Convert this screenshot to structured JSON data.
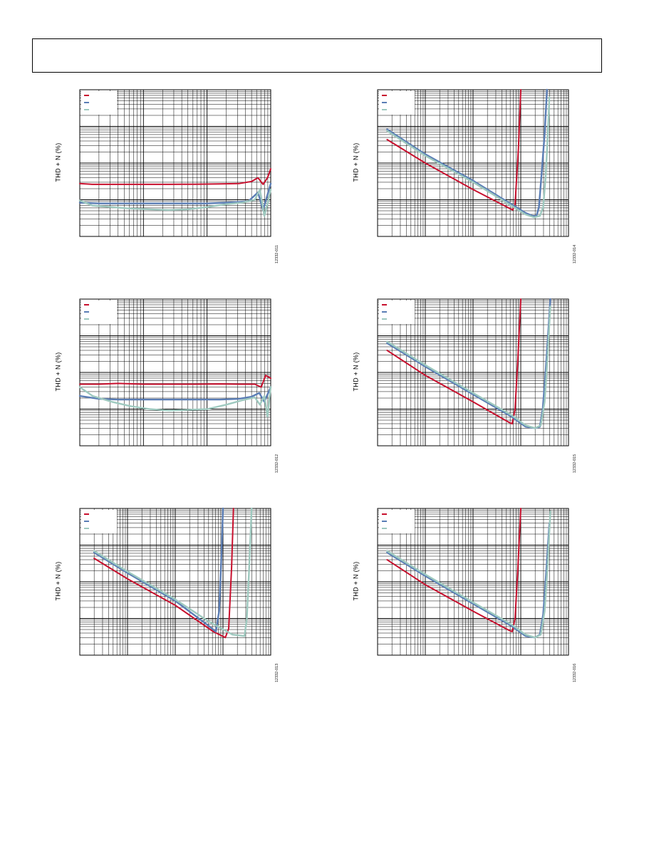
{
  "page": {
    "colors": {
      "red": "#c8102e",
      "blue": "#5a7db5",
      "green": "#9ec9bf",
      "grid": "#000000"
    }
  },
  "panels": [
    {
      "id": "p1",
      "ylabel": "THD + N (%)",
      "fig_id": "12332-011",
      "chart_data": {
        "type": "line",
        "grid": "log-log",
        "xscale": "log",
        "yscale": "log",
        "x_decades": 3,
        "y_decades": 4,
        "legend": "top-left",
        "series": [
          {
            "color_key": "red",
            "points": [
              [
                0,
                0.64
              ],
              [
                0.2,
                0.645
              ],
              [
                0.6,
                0.645
              ],
              [
                1.0,
                0.645
              ],
              [
                1.4,
                0.645
              ],
              [
                1.8,
                0.644
              ],
              [
                2.2,
                0.642
              ],
              [
                2.5,
                0.64
              ],
              [
                2.7,
                0.625
              ],
              [
                2.8,
                0.6
              ],
              [
                2.88,
                0.645
              ],
              [
                2.95,
                0.6
              ],
              [
                3.0,
                0.54
              ]
            ]
          },
          {
            "color_key": "blue",
            "points": [
              [
                0,
                0.77
              ],
              [
                0.3,
                0.775
              ],
              [
                0.8,
                0.775
              ],
              [
                1.2,
                0.775
              ],
              [
                1.6,
                0.775
              ],
              [
                2.0,
                0.775
              ],
              [
                2.3,
                0.77
              ],
              [
                2.5,
                0.765
              ],
              [
                2.65,
                0.76
              ],
              [
                2.8,
                0.7
              ],
              [
                2.88,
                0.82
              ],
              [
                2.94,
                0.73
              ],
              [
                3.0,
                0.64
              ]
            ]
          },
          {
            "color_key": "green",
            "points": [
              [
                0,
                0.755
              ],
              [
                0.2,
                0.79
              ],
              [
                0.5,
                0.8
              ],
              [
                0.8,
                0.81
              ],
              [
                1.1,
                0.815
              ],
              [
                1.4,
                0.82
              ],
              [
                1.7,
                0.815
              ],
              [
                2.0,
                0.8
              ],
              [
                2.3,
                0.78
              ],
              [
                2.55,
                0.77
              ],
              [
                2.75,
                0.75
              ],
              [
                2.83,
                0.68
              ],
              [
                2.9,
                0.86
              ],
              [
                2.96,
                0.76
              ],
              [
                3.0,
                0.68
              ]
            ]
          }
        ]
      }
    },
    {
      "id": "p2",
      "ylabel": "THD + N (%)",
      "fig_id": "12332-014",
      "chart_data": {
        "type": "line",
        "grid": "log-log",
        "xscale": "log",
        "yscale": "log",
        "x_decades": 4,
        "y_decades": 4,
        "legend": "top-left",
        "series": [
          {
            "color_key": "red",
            "points": [
              [
                0.2,
                0.34
              ],
              [
                1.0,
                0.5
              ],
              [
                2.0,
                0.68
              ],
              [
                2.83,
                0.82
              ],
              [
                2.88,
                0.78
              ],
              [
                2.95,
                0.4
              ],
              [
                3.0,
                0.0
              ]
            ]
          },
          {
            "color_key": "blue",
            "points": [
              [
                0.2,
                0.27
              ],
              [
                1.0,
                0.44
              ],
              [
                2.0,
                0.62
              ],
              [
                2.8,
                0.78
              ],
              [
                3.1,
                0.84
              ],
              [
                3.25,
                0.86
              ],
              [
                3.33,
                0.86
              ],
              [
                3.38,
                0.8
              ],
              [
                3.43,
                0.6
              ],
              [
                3.5,
                0.3
              ],
              [
                3.55,
                0.0
              ]
            ]
          },
          {
            "color_key": "green",
            "points": [
              [
                0.2,
                0.28
              ],
              [
                1.0,
                0.45
              ],
              [
                2.0,
                0.63
              ],
              [
                2.8,
                0.79
              ],
              [
                3.1,
                0.85
              ],
              [
                3.28,
                0.87
              ],
              [
                3.4,
                0.86
              ],
              [
                3.47,
                0.8
              ],
              [
                3.52,
                0.6
              ],
              [
                3.56,
                0.35
              ],
              [
                3.6,
                0.05
              ]
            ]
          }
        ]
      }
    },
    {
      "id": "p3",
      "ylabel": "THD + N (%)",
      "fig_id": "12332-012",
      "chart_data": {
        "type": "line",
        "grid": "log-log",
        "xscale": "log",
        "yscale": "log",
        "x_decades": 3,
        "y_decades": 4,
        "legend": "top-left",
        "series": [
          {
            "color_key": "red",
            "points": [
              [
                0,
                0.58
              ],
              [
                0.3,
                0.58
              ],
              [
                0.6,
                0.575
              ],
              [
                1.0,
                0.58
              ],
              [
                1.4,
                0.58
              ],
              [
                1.8,
                0.58
              ],
              [
                2.2,
                0.578
              ],
              [
                2.5,
                0.58
              ],
              [
                2.75,
                0.58
              ],
              [
                2.85,
                0.6
              ],
              [
                2.92,
                0.52
              ],
              [
                3.0,
                0.54
              ]
            ]
          },
          {
            "color_key": "blue",
            "points": [
              [
                0,
                0.66
              ],
              [
                0.3,
                0.68
              ],
              [
                0.6,
                0.685
              ],
              [
                1.0,
                0.685
              ],
              [
                1.4,
                0.685
              ],
              [
                1.8,
                0.685
              ],
              [
                2.2,
                0.685
              ],
              [
                2.5,
                0.68
              ],
              [
                2.7,
                0.665
              ],
              [
                2.82,
                0.64
              ],
              [
                2.9,
                0.7
              ],
              [
                2.95,
                0.65
              ],
              [
                3.0,
                0.6
              ]
            ]
          },
          {
            "color_key": "green",
            "points": [
              [
                0,
                0.6
              ],
              [
                0.2,
                0.66
              ],
              [
                0.5,
                0.7
              ],
              [
                0.8,
                0.73
              ],
              [
                1.1,
                0.75
              ],
              [
                1.4,
                0.76
              ],
              [
                1.7,
                0.755
              ],
              [
                2.0,
                0.75
              ],
              [
                2.3,
                0.72
              ],
              [
                2.55,
                0.69
              ],
              [
                2.75,
                0.67
              ],
              [
                2.83,
                0.72
              ],
              [
                2.9,
                0.66
              ],
              [
                2.95,
                0.8
              ],
              [
                3.0,
                0.6
              ]
            ]
          }
        ]
      }
    },
    {
      "id": "p4",
      "ylabel": "THD + N (%)",
      "fig_id": "12332-015",
      "chart_data": {
        "type": "line",
        "grid": "log-log",
        "xscale": "log",
        "yscale": "log",
        "x_decades": 4,
        "y_decades": 4,
        "legend": "top-left",
        "series": [
          {
            "color_key": "red",
            "points": [
              [
                0.2,
                0.35
              ],
              [
                1.0,
                0.52
              ],
              [
                2.0,
                0.7
              ],
              [
                2.75,
                0.84
              ],
              [
                2.82,
                0.85
              ],
              [
                2.88,
                0.75
              ],
              [
                2.94,
                0.4
              ],
              [
                3.0,
                0.0
              ]
            ]
          },
          {
            "color_key": "blue",
            "points": [
              [
                0.2,
                0.3
              ],
              [
                1.0,
                0.46
              ],
              [
                2.0,
                0.65
              ],
              [
                2.8,
                0.8
              ],
              [
                3.1,
                0.87
              ],
              [
                3.3,
                0.88
              ],
              [
                3.4,
                0.87
              ],
              [
                3.46,
                0.75
              ],
              [
                3.52,
                0.5
              ],
              [
                3.58,
                0.2
              ],
              [
                3.62,
                0.0
              ]
            ]
          },
          {
            "color_key": "green",
            "points": [
              [
                0.2,
                0.29
              ],
              [
                1.0,
                0.45
              ],
              [
                2.0,
                0.64
              ],
              [
                2.8,
                0.79
              ],
              [
                3.1,
                0.86
              ],
              [
                3.3,
                0.88
              ],
              [
                3.42,
                0.86
              ],
              [
                3.5,
                0.7
              ],
              [
                3.56,
                0.4
              ],
              [
                3.62,
                0.05
              ]
            ]
          }
        ]
      }
    },
    {
      "id": "p5",
      "ylabel": "THD + N (%)",
      "fig_id": "12332-013",
      "chart_data": {
        "type": "line",
        "grid": "log-log",
        "xscale": "log",
        "yscale": "log",
        "x_decades": 4,
        "y_decades": 4,
        "legend": "top-left",
        "series": [
          {
            "color_key": "red",
            "points": [
              [
                0.3,
                0.34
              ],
              [
                1.0,
                0.48
              ],
              [
                2.0,
                0.66
              ],
              [
                2.8,
                0.84
              ],
              [
                3.05,
                0.88
              ],
              [
                3.12,
                0.82
              ],
              [
                3.18,
                0.4
              ],
              [
                3.22,
                0.0
              ]
            ]
          },
          {
            "color_key": "blue",
            "points": [
              [
                0.3,
                0.3
              ],
              [
                1.0,
                0.44
              ],
              [
                2.0,
                0.63
              ],
              [
                2.7,
                0.8
              ],
              [
                2.85,
                0.84
              ],
              [
                2.92,
                0.7
              ],
              [
                2.97,
                0.3
              ],
              [
                3.0,
                0.0
              ]
            ]
          },
          {
            "color_key": "green",
            "points": [
              [
                0.3,
                0.29
              ],
              [
                1.0,
                0.43
              ],
              [
                2.0,
                0.62
              ],
              [
                2.7,
                0.77
              ],
              [
                3.2,
                0.86
              ],
              [
                3.45,
                0.87
              ],
              [
                3.5,
                0.75
              ],
              [
                3.55,
                0.4
              ],
              [
                3.6,
                0.0
              ]
            ]
          }
        ]
      }
    },
    {
      "id": "p6",
      "ylabel": "THD + N (%)",
      "fig_id": "12332-016",
      "chart_data": {
        "type": "line",
        "grid": "log-log",
        "xscale": "log",
        "yscale": "log",
        "x_decades": 4,
        "y_decades": 4,
        "legend": "top-left",
        "series": [
          {
            "color_key": "red",
            "points": [
              [
                0.2,
                0.35
              ],
              [
                1.0,
                0.52
              ],
              [
                2.0,
                0.7
              ],
              [
                2.75,
                0.83
              ],
              [
                2.82,
                0.84
              ],
              [
                2.88,
                0.75
              ],
              [
                2.94,
                0.4
              ],
              [
                3.0,
                0.0
              ]
            ]
          },
          {
            "color_key": "blue",
            "points": [
              [
                0.2,
                0.3
              ],
              [
                1.0,
                0.46
              ],
              [
                2.0,
                0.65
              ],
              [
                2.8,
                0.8
              ],
              [
                3.1,
                0.87
              ],
              [
                3.3,
                0.88
              ],
              [
                3.4,
                0.86
              ],
              [
                3.47,
                0.72
              ],
              [
                3.53,
                0.45
              ],
              [
                3.6,
                0.1
              ]
            ]
          },
          {
            "color_key": "green",
            "points": [
              [
                0.2,
                0.29
              ],
              [
                1.0,
                0.45
              ],
              [
                2.0,
                0.64
              ],
              [
                2.8,
                0.79
              ],
              [
                3.1,
                0.86
              ],
              [
                3.3,
                0.88
              ],
              [
                3.42,
                0.86
              ],
              [
                3.5,
                0.7
              ],
              [
                3.57,
                0.35
              ],
              [
                3.62,
                0.02
              ]
            ]
          }
        ]
      }
    }
  ]
}
